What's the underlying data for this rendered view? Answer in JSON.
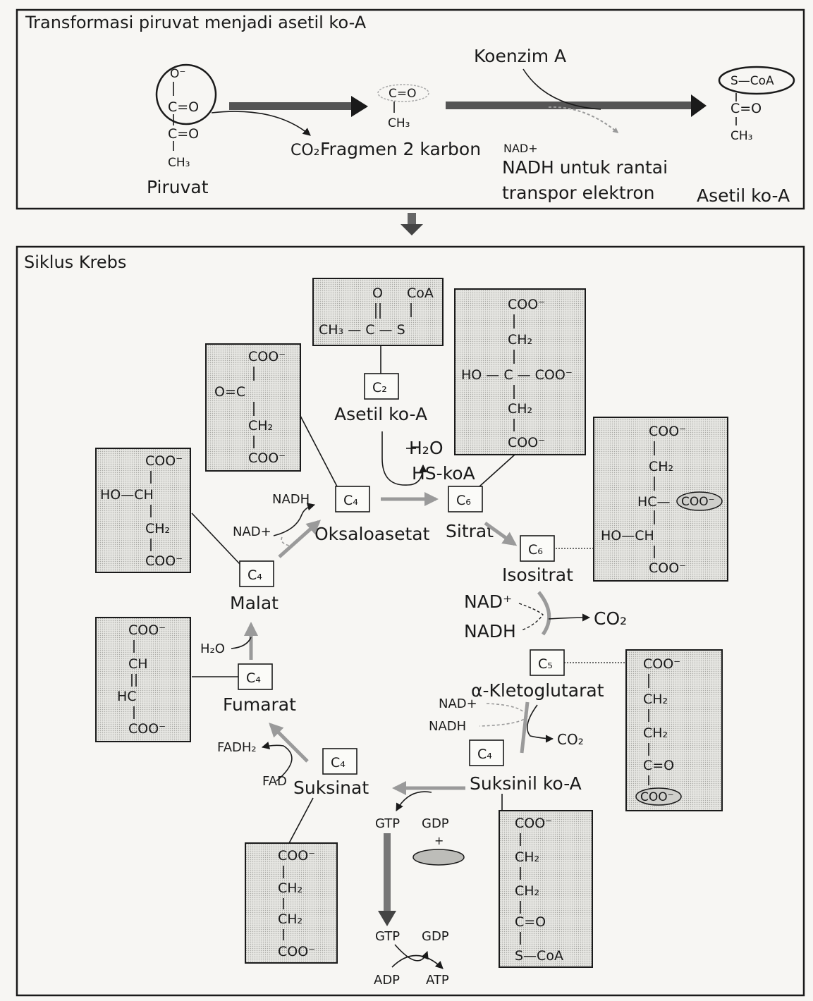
{
  "panel_top": {
    "title": "Transformasi piruvat menjadi asetil ko-A",
    "koenzim": "Koenzim A",
    "piruvat": "Piruvat",
    "co2": "CO₂",
    "fragmen": "Fragmen 2 karbon",
    "nad_plus": "NAD+",
    "nadh_note_1": "NADH untuk rantai",
    "nadh_note_2": "transpor elektron",
    "asetil": "Asetil ko-A",
    "struct": {
      "o_minus": "O⁻",
      "c_o": "C=O",
      "ch3": "CH₃",
      "s_coa": "S—CoA"
    }
  },
  "panel_krebs": {
    "title": "Siklus Krebs",
    "intermediates": {
      "asetil": "Asetil ko-A",
      "oksaloasetat": "Oksaloasetat",
      "sitrat": "Sitrat",
      "isositrat": "Isositrat",
      "ketoglutarat": "α-Kletoglutarat",
      "suksinil": "Suksinil ko-A",
      "suksinat": "Suksinat",
      "fumarat": "Fumarat",
      "malat": "Malat"
    },
    "carbon_tags": {
      "c2": "C₂",
      "c4": "C₄",
      "c5": "C₅",
      "c6": "C₆"
    },
    "cofactors": {
      "h2o": "H₂O",
      "hs_koa": "HS-koA",
      "nad_plus": "NAD+",
      "nad_sup": "NAD⁺",
      "nadh": "NADH",
      "co2": "CO₂",
      "fadh2": "FADH₂",
      "fad": "FAD",
      "gtp": "GTP",
      "gdp": "GDP",
      "plus": "+",
      "adp": "ADP",
      "atp": "ATP"
    },
    "structures": {
      "coo": "COO⁻",
      "ch2": "CH₂",
      "ch": "CH",
      "hc": "HC",
      "c_o": "C=O",
      "o_c": "O=C",
      "ho_ch": "HO—CH",
      "hc_dash": "HC—",
      "ho_c_coo": "HO — C — COO⁻",
      "s_coa": "S—CoA",
      "o": "O",
      "coa": "CoA",
      "ch3_c_s": "CH₃ — C — S"
    }
  },
  "colors": {
    "ink": "#1a1a1a",
    "paper": "#f7f6f3",
    "gray_arrow": "#9a9a9a"
  }
}
